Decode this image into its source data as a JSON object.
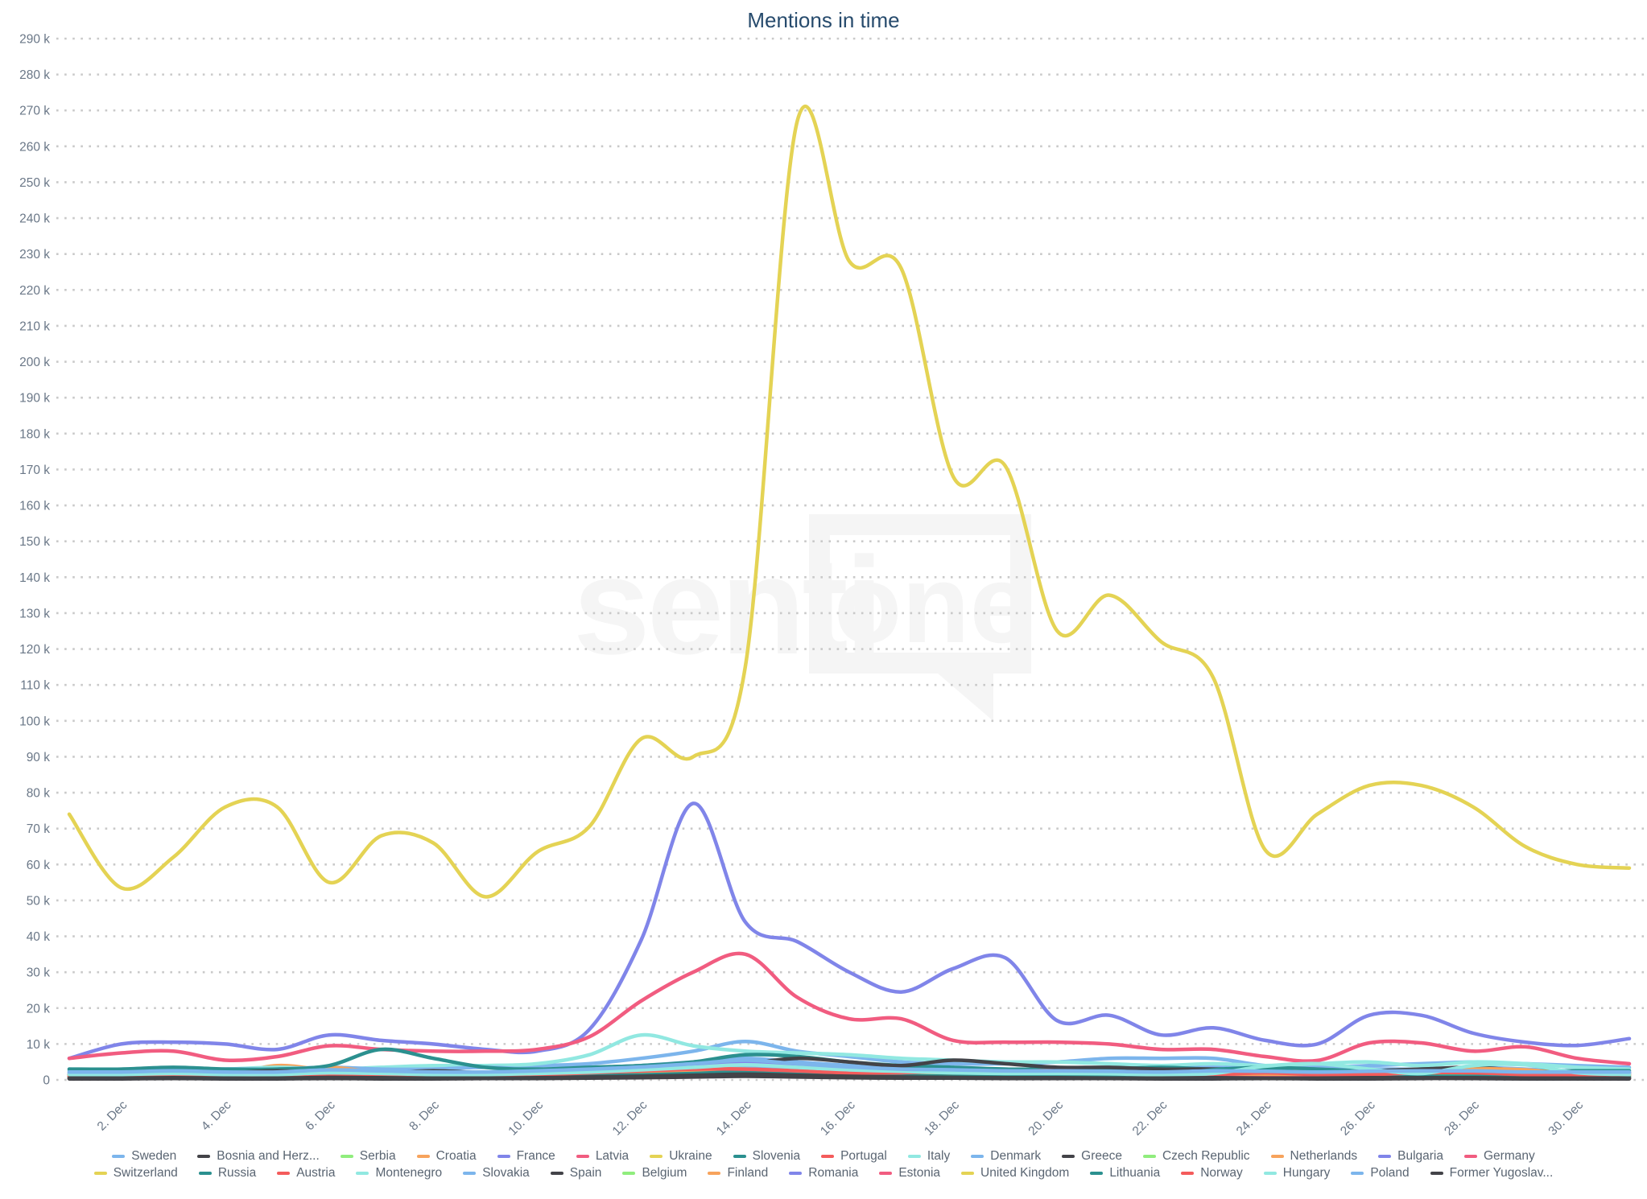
{
  "title": "Mentions in time",
  "watermark": {
    "text_left": "senti",
    "text_right": "one"
  },
  "chart_data": {
    "type": "line",
    "title": "Mentions in time",
    "values_unit": "thousands of mentions",
    "x_categories": [
      "1. Dec",
      "2. Dec",
      "3. Dec",
      "4. Dec",
      "5. Dec",
      "6. Dec",
      "7. Dec",
      "8. Dec",
      "9. Dec",
      "10. Dec",
      "11. Dec",
      "12. Dec",
      "13. Dec",
      "14. Dec",
      "15. Dec",
      "16. Dec",
      "17. Dec",
      "18. Dec",
      "19. Dec",
      "20. Dec",
      "21. Dec",
      "22. Dec",
      "23. Dec",
      "24. Dec",
      "25. Dec",
      "26. Dec",
      "27. Dec",
      "28. Dec",
      "29. Dec",
      "30. Dec",
      "31. Dec"
    ],
    "x_tick_labels": [
      "2. Dec",
      "4. Dec",
      "6. Dec",
      "8. Dec",
      "10. Dec",
      "12. Dec",
      "14. Dec",
      "16. Dec",
      "18. Dec",
      "20. Dec",
      "22. Dec",
      "24. Dec",
      "26. Dec",
      "28. Dec",
      "30. Dec"
    ],
    "y_tick_labels": [
      "0",
      "10 k",
      "20 k",
      "30 k",
      "40 k",
      "50 k",
      "60 k",
      "70 k",
      "80 k",
      "90 k",
      "100 k",
      "110 k",
      "120 k",
      "130 k",
      "140 k",
      "150 k",
      "160 k",
      "170 k",
      "180 k",
      "190 k",
      "200 k",
      "210 k",
      "220 k",
      "230 k",
      "240 k",
      "250 k",
      "260 k",
      "270 k",
      "280 k",
      "290 k"
    ],
    "ylim_thousands": [
      0,
      290
    ],
    "y_tick_step_thousands": 10,
    "grid": "dotted horizontal",
    "legend_position": "bottom",
    "series": [
      {
        "name": "Sweden",
        "color": "#7cb5ec",
        "values": [
          2.5,
          2.5,
          3,
          3,
          3,
          3.5,
          3,
          3.5,
          4,
          4,
          4.5,
          6,
          8,
          10.7,
          8,
          6.5,
          5,
          4.5,
          4.5,
          5,
          6,
          6,
          6,
          4,
          3.5,
          4,
          4.5,
          5,
          4.5,
          4,
          3.5
        ]
      },
      {
        "name": "Bosnia and Herz...",
        "color": "#434348",
        "values": [
          0.3,
          0.3,
          0.4,
          0.3,
          0.3,
          0.4,
          0.3,
          0.3,
          0.4,
          0.4,
          0.5,
          0.6,
          0.8,
          1,
          0.8,
          0.6,
          0.5,
          0.5,
          0.4,
          0.4,
          0.4,
          0.3,
          0.3,
          0.4,
          0.3,
          0.3,
          0.4,
          0.4,
          0.3,
          0.3,
          0.3
        ]
      },
      {
        "name": "Serbia",
        "color": "#90ed7d",
        "values": [
          0.5,
          0.5,
          0.6,
          0.5,
          0.6,
          0.7,
          0.6,
          0.5,
          0.5,
          0.6,
          0.8,
          1,
          1.2,
          1.5,
          1.2,
          1,
          0.8,
          0.8,
          0.7,
          0.6,
          0.6,
          0.5,
          0.6,
          0.6,
          0.5,
          0.5,
          0.6,
          0.7,
          0.6,
          0.5,
          0.5
        ]
      },
      {
        "name": "Croatia",
        "color": "#f7a35c",
        "values": [
          0.8,
          0.8,
          1,
          1.2,
          4,
          2.5,
          1.2,
          1,
          0.8,
          1,
          1.2,
          1.5,
          2,
          2.5,
          2,
          1.5,
          1.2,
          1,
          1,
          0.8,
          0.8,
          0.8,
          1,
          0.8,
          0.8,
          1,
          1,
          1.2,
          1,
          0.8,
          0.8
        ]
      },
      {
        "name": "France",
        "color": "#8085e9",
        "values": [
          6,
          10,
          10.5,
          10,
          8.5,
          12.5,
          11,
          10,
          8.5,
          8,
          14,
          39,
          77,
          44,
          38.5,
          30,
          24.5,
          31,
          34,
          16.5,
          18,
          12.5,
          14.5,
          11,
          10,
          18,
          18,
          13,
          10.5,
          9.6,
          11.5
        ]
      },
      {
        "name": "Latvia",
        "color": "#f15c80",
        "values": [
          0.5,
          0.5,
          0.6,
          0.5,
          0.5,
          0.6,
          0.6,
          0.5,
          0.5,
          0.6,
          0.7,
          0.9,
          1.2,
          1.5,
          1.2,
          0.9,
          0.8,
          0.7,
          0.6,
          0.6,
          0.5,
          0.5,
          0.6,
          0.5,
          0.5,
          0.6,
          0.6,
          0.6,
          0.5,
          0.5,
          0.5
        ]
      },
      {
        "name": "Ukraine",
        "color": "#e4d354",
        "values": [
          1,
          1,
          1.2,
          1,
          1,
          1.2,
          1.1,
          1,
          1,
          1.2,
          1.5,
          2,
          2.5,
          3,
          2.5,
          2,
          1.8,
          1.5,
          1.4,
          1.2,
          1.2,
          1,
          1.2,
          1.2,
          1,
          1,
          1.2,
          1.3,
          1.1,
          1,
          1
        ]
      },
      {
        "name": "Slovenia",
        "color": "#2b908f",
        "values": [
          0.6,
          0.6,
          0.7,
          0.6,
          0.6,
          0.8,
          0.7,
          0.6,
          0.6,
          0.7,
          0.8,
          1,
          1.3,
          1.6,
          1.3,
          1,
          0.9,
          0.8,
          0.7,
          0.7,
          0.6,
          0.6,
          0.7,
          0.6,
          0.6,
          0.7,
          0.7,
          0.7,
          0.6,
          0.6,
          0.6
        ]
      },
      {
        "name": "Portugal",
        "color": "#f45b5b",
        "values": [
          0.7,
          0.7,
          0.8,
          0.7,
          0.7,
          0.9,
          0.8,
          0.7,
          0.7,
          0.8,
          1,
          1.2,
          1.5,
          1.8,
          1.5,
          1.2,
          1,
          0.9,
          0.8,
          0.8,
          0.7,
          0.7,
          0.8,
          0.7,
          0.7,
          0.8,
          0.8,
          0.8,
          0.7,
          0.7,
          0.7
        ]
      },
      {
        "name": "Italy",
        "color": "#91e8e1",
        "values": [
          2.5,
          2.5,
          3,
          3,
          3.5,
          3,
          3.5,
          4,
          4,
          4.5,
          7,
          12.5,
          9.5,
          8,
          7.5,
          7,
          6,
          5.5,
          5,
          5,
          4.5,
          4,
          4.5,
          4,
          4.5,
          5,
          4,
          5,
          4.5,
          3.5,
          3
        ]
      },
      {
        "name": "Denmark",
        "color": "#7cb5ec",
        "values": [
          3,
          2.5,
          2.5,
          3,
          3,
          3.5,
          3,
          3,
          3.5,
          3,
          3.5,
          4,
          5,
          6,
          5,
          4,
          3.5,
          3,
          3,
          2.5,
          2.5,
          3,
          3.5,
          3,
          2.5,
          3,
          3,
          3.5,
          3,
          2.5,
          2.5
        ]
      },
      {
        "name": "Greece",
        "color": "#434348",
        "values": [
          0.4,
          0.4,
          0.5,
          0.4,
          0.4,
          0.5,
          0.4,
          0.4,
          0.5,
          0.5,
          0.6,
          0.8,
          1,
          1.2,
          1,
          0.8,
          0.6,
          0.6,
          0.5,
          0.5,
          0.4,
          0.4,
          0.5,
          0.4,
          0.4,
          0.5,
          0.5,
          0.5,
          0.4,
          0.4,
          0.4
        ]
      },
      {
        "name": "Czech Republic",
        "color": "#90ed7d",
        "values": [
          1,
          1,
          1.2,
          1.5,
          2,
          1.5,
          1.2,
          1,
          1,
          1.2,
          1.5,
          2,
          2.5,
          3,
          2.2,
          1.8,
          1.5,
          1.5,
          1.5,
          1.2,
          1,
          1,
          1.5,
          1.5,
          1,
          1,
          1.5,
          2,
          1.5,
          1,
          1
        ]
      },
      {
        "name": "Netherlands",
        "color": "#f7a35c",
        "values": [
          1.5,
          2,
          2,
          2.5,
          2.5,
          3.5,
          2,
          1.5,
          1.5,
          2,
          2.5,
          3.5,
          3.5,
          3,
          2.7,
          2.5,
          2,
          2.5,
          2.5,
          2,
          2,
          2,
          2,
          2,
          2.5,
          2.5,
          2,
          2,
          1.8,
          1.5,
          1.5
        ]
      },
      {
        "name": "Bulgaria",
        "color": "#8085e9",
        "values": [
          1,
          1,
          1.2,
          1,
          1,
          1.3,
          1.2,
          1,
          1,
          1.2,
          1.5,
          2,
          2.8,
          3.5,
          2.8,
          2.2,
          1.8,
          1.5,
          1.4,
          1.2,
          1.1,
          1,
          1.2,
          1.1,
          1,
          1.2,
          1.2,
          1.2,
          1,
          1,
          1
        ]
      },
      {
        "name": "Germany",
        "color": "#f15c80",
        "values": [
          6,
          7.5,
          8,
          5.5,
          6.5,
          9.5,
          8.5,
          8,
          8,
          8.5,
          12,
          22,
          30,
          35,
          23,
          17,
          17,
          11,
          10.5,
          10.5,
          10,
          8.5,
          8.5,
          6.5,
          5.4,
          10.3,
          10.3,
          8,
          9.2,
          6,
          4.5
        ]
      },
      {
        "name": "Switzerland",
        "color": "#e4d354",
        "values": [
          1.2,
          1.2,
          1.4,
          1.2,
          1.2,
          1.5,
          1.3,
          1.2,
          1.2,
          1.4,
          1.8,
          2.2,
          2.8,
          3.2,
          2.6,
          2.2,
          1.9,
          1.6,
          1.5,
          1.4,
          1.3,
          1.2,
          1.4,
          1.3,
          1.2,
          1.3,
          1.4,
          1.4,
          1.2,
          1.2,
          1.2
        ]
      },
      {
        "name": "Russia",
        "color": "#2b908f",
        "values": [
          3,
          3,
          3.5,
          3,
          3,
          4,
          8.5,
          6,
          3.5,
          3,
          3.5,
          4,
          5,
          7,
          6.5,
          5,
          4,
          3.5,
          3,
          3,
          3,
          3.5,
          3,
          3.5,
          3,
          2.5,
          3,
          3,
          2.5,
          2.5,
          2.5
        ]
      },
      {
        "name": "Austria",
        "color": "#f45b5b",
        "values": [
          1.5,
          1.4,
          1.6,
          1.5,
          1.5,
          1.8,
          1.6,
          1.5,
          1.5,
          1.7,
          2,
          2.3,
          2.8,
          3.2,
          2.7,
          2.2,
          2,
          1.8,
          2.2,
          2.6,
          2,
          1.7,
          1.8,
          1.6,
          1.5,
          1.6,
          1.8,
          1.7,
          1.5,
          1.5,
          1.5
        ]
      },
      {
        "name": "Montenegro",
        "color": "#91e8e1",
        "values": [
          0.8,
          0.8,
          1,
          0.8,
          0.8,
          1,
          0.9,
          0.8,
          0.8,
          1,
          1.2,
          1.5,
          2,
          2.4,
          2,
          1.5,
          1.3,
          1.1,
          1,
          1,
          0.9,
          0.8,
          1,
          0.9,
          0.8,
          0.9,
          1,
          1,
          0.8,
          0.8,
          0.8
        ]
      },
      {
        "name": "Slovakia",
        "color": "#7cb5ec",
        "values": [
          1.8,
          1.8,
          2,
          1.8,
          1.8,
          2.2,
          2,
          1.8,
          1.8,
          2,
          2.4,
          2.8,
          3.5,
          4,
          3.4,
          2.8,
          2.4,
          2.2,
          2,
          2,
          1.9,
          1.8,
          2,
          1.9,
          1.8,
          1.9,
          2,
          2,
          1.8,
          1.8,
          1.8
        ]
      },
      {
        "name": "Spain",
        "color": "#434348",
        "values": [
          1.5,
          1.5,
          2,
          2,
          2.5,
          2,
          2,
          2.5,
          2,
          2,
          2.5,
          3,
          3.5,
          4.5,
          6,
          5,
          4,
          5.5,
          4.5,
          3.5,
          3.5,
          3,
          3,
          2.5,
          2,
          2.5,
          3,
          3.5,
          2.5,
          2,
          2
        ]
      },
      {
        "name": "Belgium",
        "color": "#90ed7d",
        "values": [
          1,
          1,
          1,
          1.5,
          2,
          1.5,
          1,
          1,
          1,
          1,
          1.5,
          2,
          2.5,
          3,
          2,
          1.5,
          1.5,
          1.5,
          1.5,
          1.5,
          1,
          1,
          1.5,
          1.5,
          1,
          1,
          1.5,
          2,
          1.5,
          1,
          1
        ]
      },
      {
        "name": "Finland",
        "color": "#f7a35c",
        "values": [
          1,
          1,
          1.2,
          1,
          1,
          1.2,
          1.1,
          1,
          1,
          1.2,
          1.4,
          1.8,
          2.2,
          2.6,
          2.2,
          1.8,
          1.5,
          1.3,
          1.2,
          1.2,
          1.1,
          1,
          1.2,
          1.1,
          1,
          1.2,
          1.5,
          3,
          2.8,
          1.5,
          1.2
        ]
      },
      {
        "name": "Romania",
        "color": "#8085e9",
        "values": [
          2,
          2,
          2.2,
          2,
          2,
          2.4,
          2.2,
          2,
          2,
          2.2,
          2.6,
          3.2,
          4,
          4.8,
          4,
          3.2,
          2.8,
          2.4,
          2.2,
          2.2,
          2,
          2,
          2.2,
          2.1,
          2,
          2.1,
          2.2,
          2.2,
          2,
          2,
          2
        ]
      },
      {
        "name": "Estonia",
        "color": "#f15c80",
        "values": [
          0.6,
          0.6,
          0.7,
          0.6,
          0.6,
          0.8,
          0.7,
          0.6,
          0.6,
          0.7,
          0.9,
          1.1,
          1.4,
          1.7,
          1.4,
          1.1,
          0.9,
          0.8,
          0.7,
          0.7,
          0.6,
          0.6,
          0.7,
          0.6,
          0.6,
          0.7,
          0.7,
          0.7,
          0.6,
          0.6,
          0.6
        ]
      },
      {
        "name": "United Kingdom",
        "color": "#e4d354",
        "values": [
          74,
          53.5,
          62,
          76,
          76,
          55,
          68,
          66,
          51,
          63.5,
          70.5,
          95,
          90,
          115,
          267,
          228,
          226,
          168,
          171,
          125,
          135,
          122,
          112,
          64,
          74,
          82,
          82,
          76,
          65,
          60,
          59
        ]
      },
      {
        "name": "Lithuania",
        "color": "#2b908f",
        "values": [
          0.8,
          0.8,
          1,
          0.8,
          0.8,
          1,
          0.9,
          0.8,
          0.8,
          1,
          1.2,
          1.4,
          1.8,
          2.2,
          1.8,
          1.4,
          1.2,
          1,
          1,
          1,
          0.9,
          0.8,
          2.8,
          3,
          1.5,
          0.9,
          1,
          1,
          0.8,
          0.8,
          0.8
        ]
      },
      {
        "name": "Norway",
        "color": "#f45b5b",
        "values": [
          1,
          1,
          1.5,
          1,
          1,
          1.5,
          1,
          1,
          1.5,
          1.5,
          2,
          2.5,
          3,
          3,
          2.5,
          2,
          2,
          2.5,
          2,
          2.5,
          2,
          1.5,
          1.5,
          2,
          1.5,
          1.5,
          2,
          2,
          1.5,
          1.5,
          1.5
        ]
      },
      {
        "name": "Hungary",
        "color": "#91e8e1",
        "values": [
          1.5,
          1.5,
          1.8,
          1.5,
          1.5,
          2,
          1.8,
          1.5,
          1.5,
          1.8,
          2.2,
          2.8,
          3.5,
          4.2,
          3.5,
          2.8,
          2.4,
          2,
          1.8,
          1.8,
          1.7,
          1.5,
          1.8,
          3.8,
          4.5,
          3,
          1.8,
          4,
          4.2,
          2,
          1.5
        ]
      },
      {
        "name": "Poland",
        "color": "#7cb5ec",
        "values": [
          2.2,
          2.2,
          2.5,
          2.2,
          2.2,
          2.8,
          2.5,
          2.2,
          2.2,
          2.5,
          3,
          3.6,
          4.5,
          5.5,
          4.5,
          3.6,
          3,
          2.8,
          2.5,
          2.5,
          2.4,
          2.2,
          2.5,
          2.4,
          2.2,
          2.4,
          2.5,
          2.5,
          2.2,
          2.2,
          2.2
        ]
      },
      {
        "name": "Former Yugoslav...",
        "color": "#434348",
        "values": [
          0.5,
          0.5,
          0.6,
          0.5,
          0.5,
          0.7,
          0.6,
          0.5,
          0.5,
          0.6,
          0.8,
          1,
          1.3,
          1.6,
          1.3,
          1,
          0.8,
          0.7,
          0.6,
          0.6,
          0.5,
          0.5,
          0.6,
          0.5,
          0.5,
          0.6,
          0.6,
          0.6,
          0.5,
          0.5,
          0.5
        ]
      }
    ]
  },
  "layout_colors": {
    "title": "#274b6d",
    "axis_labels": "#6a7787",
    "gridline": "#c9c9c9",
    "legend_text": "#5a6572",
    "watermark": "#f5f5f5",
    "background": "#ffffff"
  }
}
